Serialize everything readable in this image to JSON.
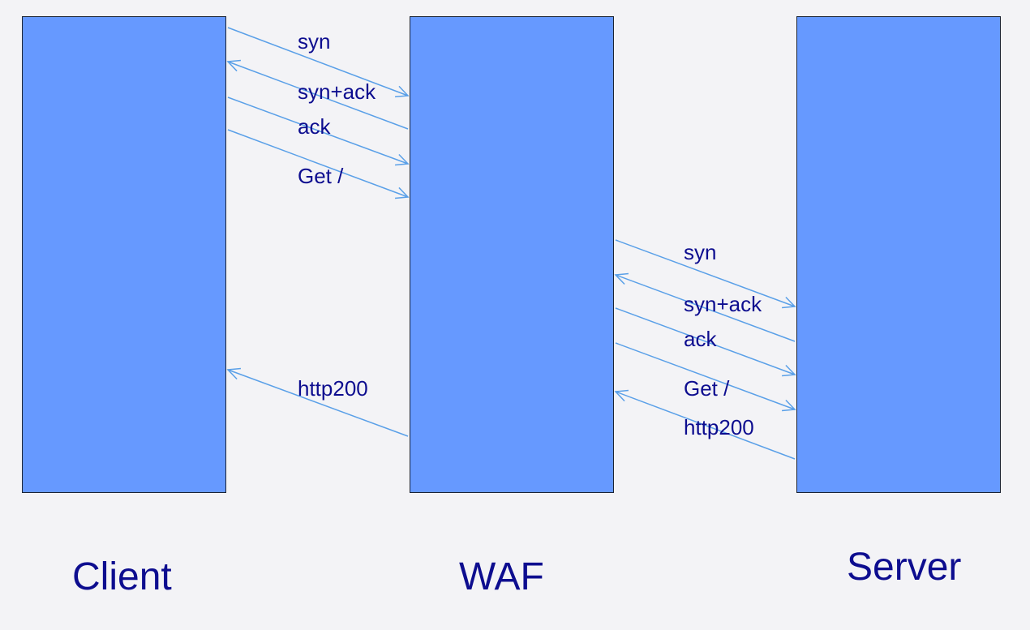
{
  "nodes": {
    "client": "Client",
    "waf": "WAF",
    "server": "Server"
  },
  "colors": {
    "box_fill": "#6699ff",
    "arrow": "#5aa0e8",
    "text": "#0d0d8f",
    "background": "#f3f3f6"
  },
  "client_waf_messages": [
    {
      "label": "syn",
      "from": "Client",
      "to": "WAF"
    },
    {
      "label": "syn+ack",
      "from": "WAF",
      "to": "Client"
    },
    {
      "label": "ack",
      "from": "Client",
      "to": "WAF"
    },
    {
      "label": "Get /",
      "from": "Client",
      "to": "WAF"
    },
    {
      "label": "http200",
      "from": "WAF",
      "to": "Client"
    }
  ],
  "waf_server_messages": [
    {
      "label": "syn",
      "from": "WAF",
      "to": "Server"
    },
    {
      "label": "syn+ack",
      "from": "Server",
      "to": "WAF"
    },
    {
      "label": "ack",
      "from": "WAF",
      "to": "Server"
    },
    {
      "label": "Get /",
      "from": "WAF",
      "to": "Server"
    },
    {
      "label": "http200",
      "from": "Server",
      "to": "WAF"
    }
  ]
}
